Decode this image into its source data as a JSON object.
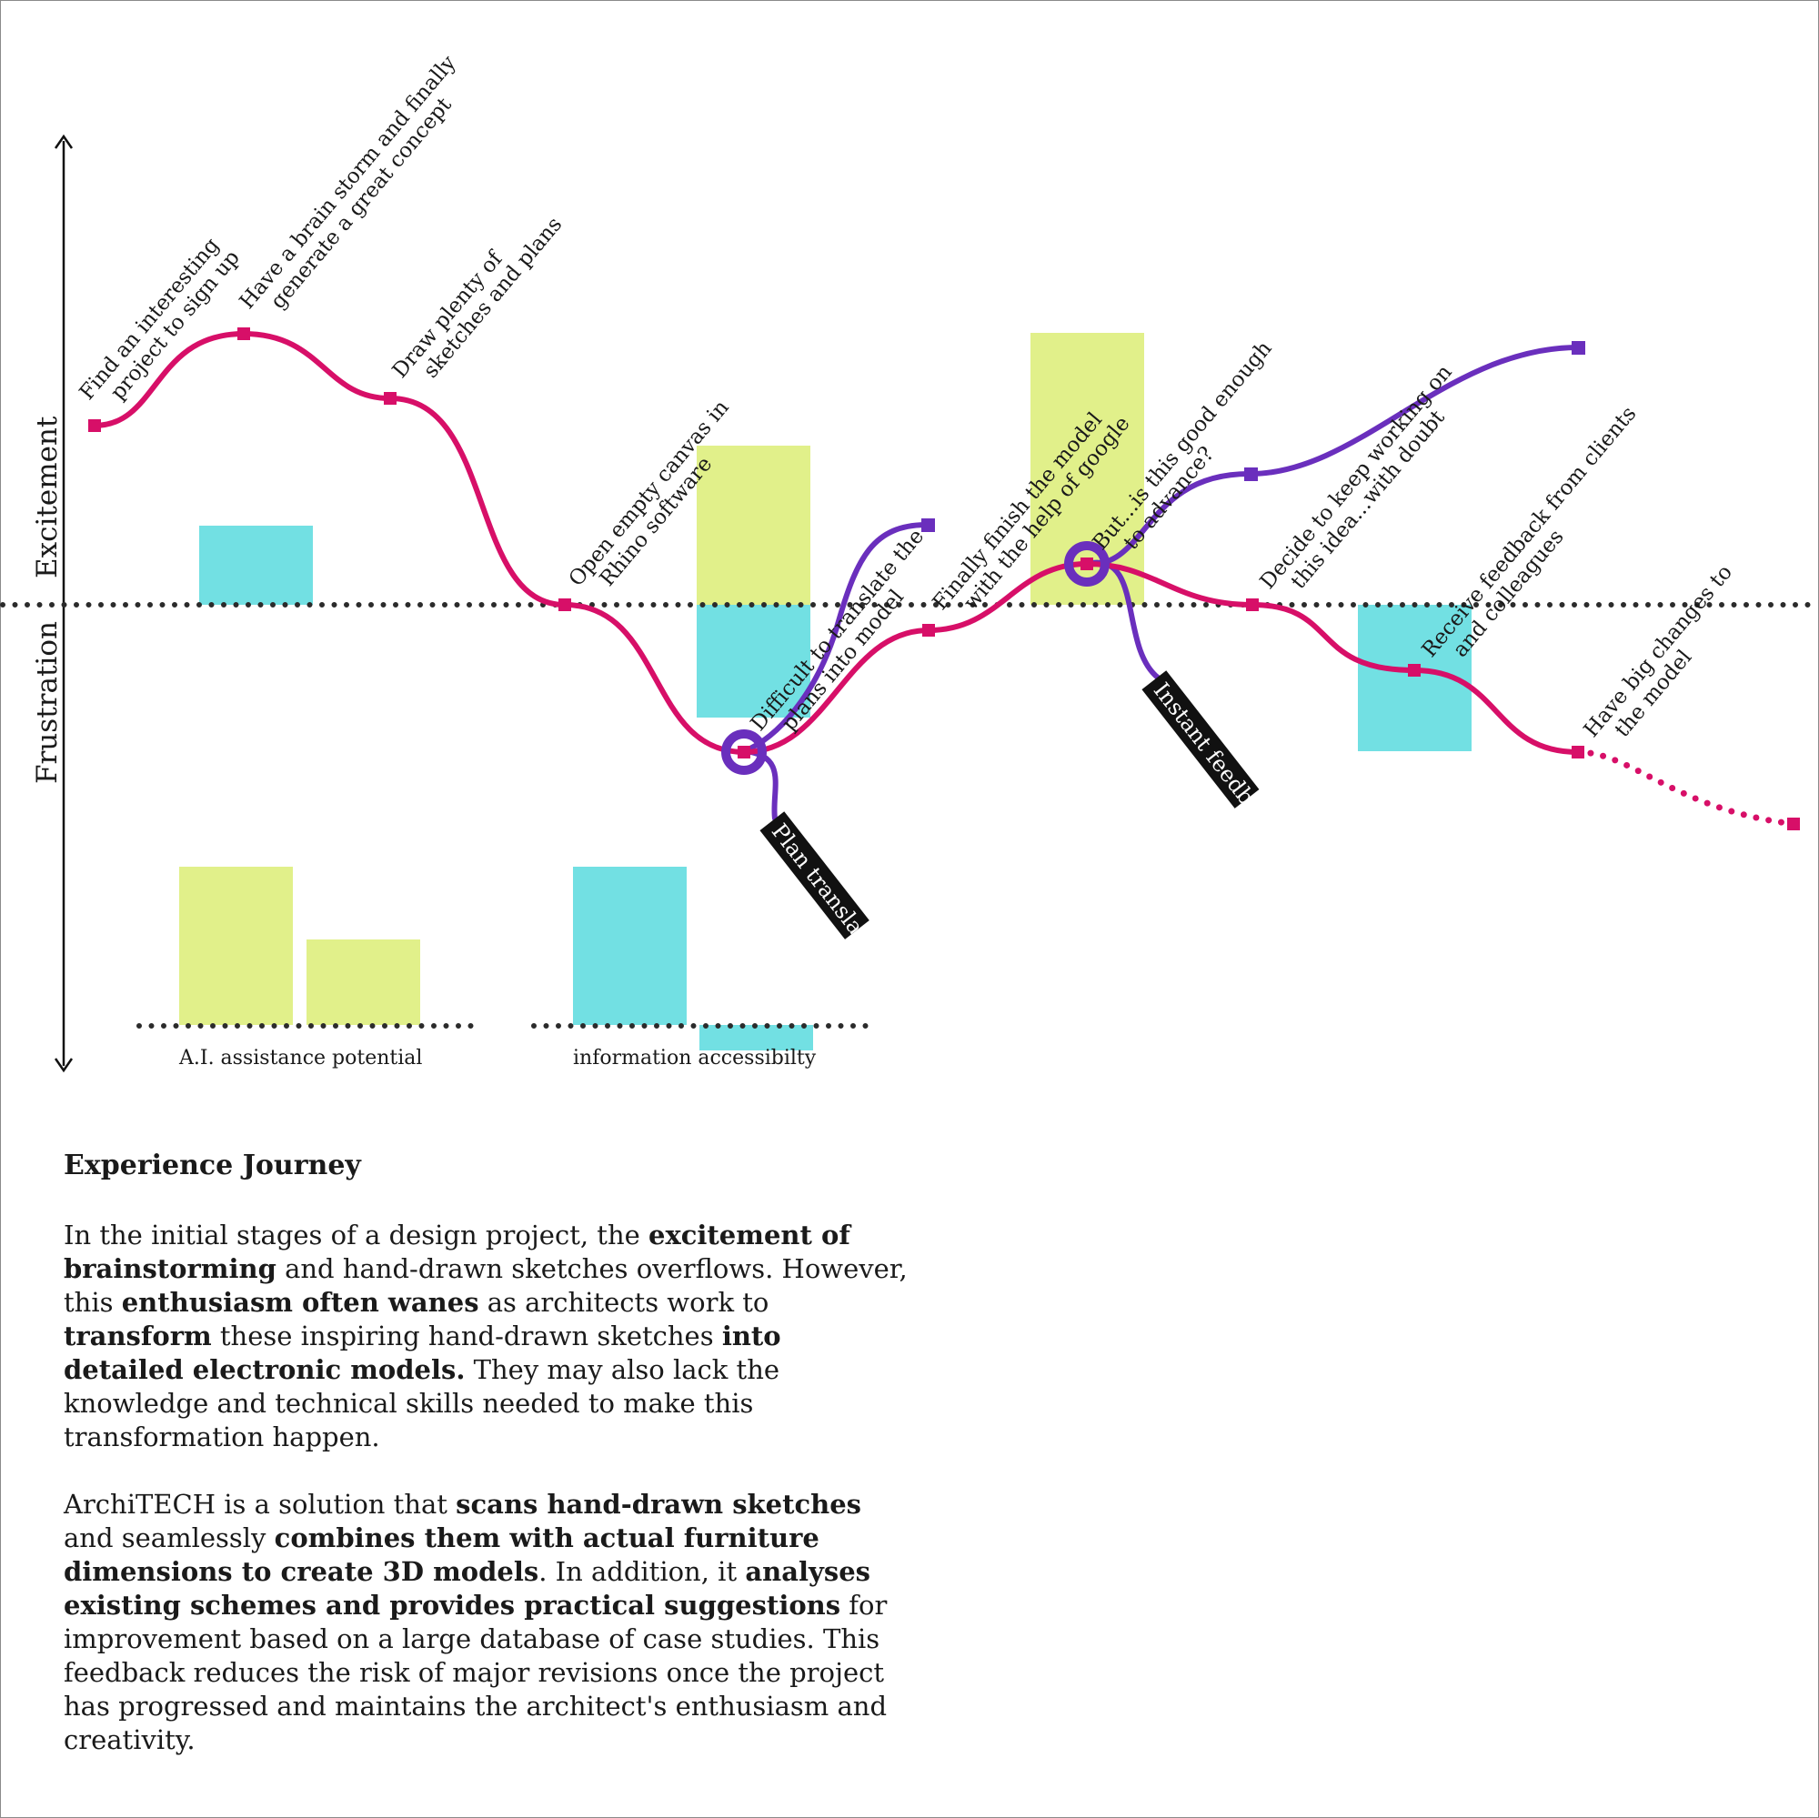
{
  "axis": {
    "top_label": "Excitement",
    "bottom_label": "Frustration"
  },
  "steps": [
    {
      "id": "s1",
      "lines": [
        "Find an interesting",
        "project to sign up"
      ]
    },
    {
      "id": "s2",
      "lines": [
        "Have a brain storm and finally",
        "generate a great concept"
      ]
    },
    {
      "id": "s3",
      "lines": [
        "Draw plenty of",
        "sketches and plans"
      ]
    },
    {
      "id": "s4",
      "lines": [
        "Open empty canvas in",
        "Rhino software"
      ]
    },
    {
      "id": "s5",
      "lines": [
        "Difficult to translate the",
        "plans into model"
      ]
    },
    {
      "id": "s6",
      "lines": [
        "Finally  finish the model",
        "with the help of google"
      ]
    },
    {
      "id": "s7",
      "lines": [
        "But...is this good enough",
        "to advance?"
      ]
    },
    {
      "id": "s8",
      "lines": [
        "Decide to keep working on",
        "this idea...with doubt"
      ]
    },
    {
      "id": "s9",
      "lines": [
        "Receive feedback from clients",
        "and colleagues"
      ]
    },
    {
      "id": "s10",
      "lines": [
        "Have big changes to",
        "the model"
      ]
    }
  ],
  "solutions": [
    {
      "id": "plan-translator",
      "label": "Plan translator"
    },
    {
      "id": "instant-feedback",
      "label": "Instant feedback"
    }
  ],
  "legend": {
    "ai_label": "A.I. assistance potential",
    "info_label": "information accessibilty"
  },
  "colors": {
    "journey_line": "#d70f68",
    "solution_line": "#6a2fbd",
    "ai_bar": "#e1f08a",
    "info_bar": "#72e0e3",
    "baseline_dots": "#2b2b2b",
    "tag_bg": "#111111"
  },
  "text": {
    "title": "Experience Journey",
    "p1": [
      {
        "t": "In the initial stages of a design project, the "
      },
      {
        "t": "excitement of brainstorming",
        "b": true
      },
      {
        "t": " and hand-drawn sketches overflows. However, this "
      },
      {
        "t": "enthusiasm often wanes",
        "b": true
      },
      {
        "t": " as architects work to "
      },
      {
        "t": "transform",
        "b": true
      },
      {
        "t": " these inspiring hand-drawn sketches "
      },
      {
        "t": "into detailed electronic models.",
        "b": true
      },
      {
        "t": " They may also lack the knowledge and technical skills needed to make this transformation happen."
      }
    ],
    "p2": [
      {
        "t": "ArchiTECH is a solution that "
      },
      {
        "t": "scans hand-drawn sketches",
        "b": true
      },
      {
        "t": " and seamlessly "
      },
      {
        "t": "combines them with actual furniture dimensions to create 3D models",
        "b": true
      },
      {
        "t": ". In addition, it "
      },
      {
        "t": "analyses existing schemes and provides practical suggestions",
        "b": true
      },
      {
        "t": " for improvement based on a large database of case studies. This feedback reduces the risk of major revisions once the project has progressed and maintains the architect's enthusiasm and creativity."
      }
    ]
  }
}
